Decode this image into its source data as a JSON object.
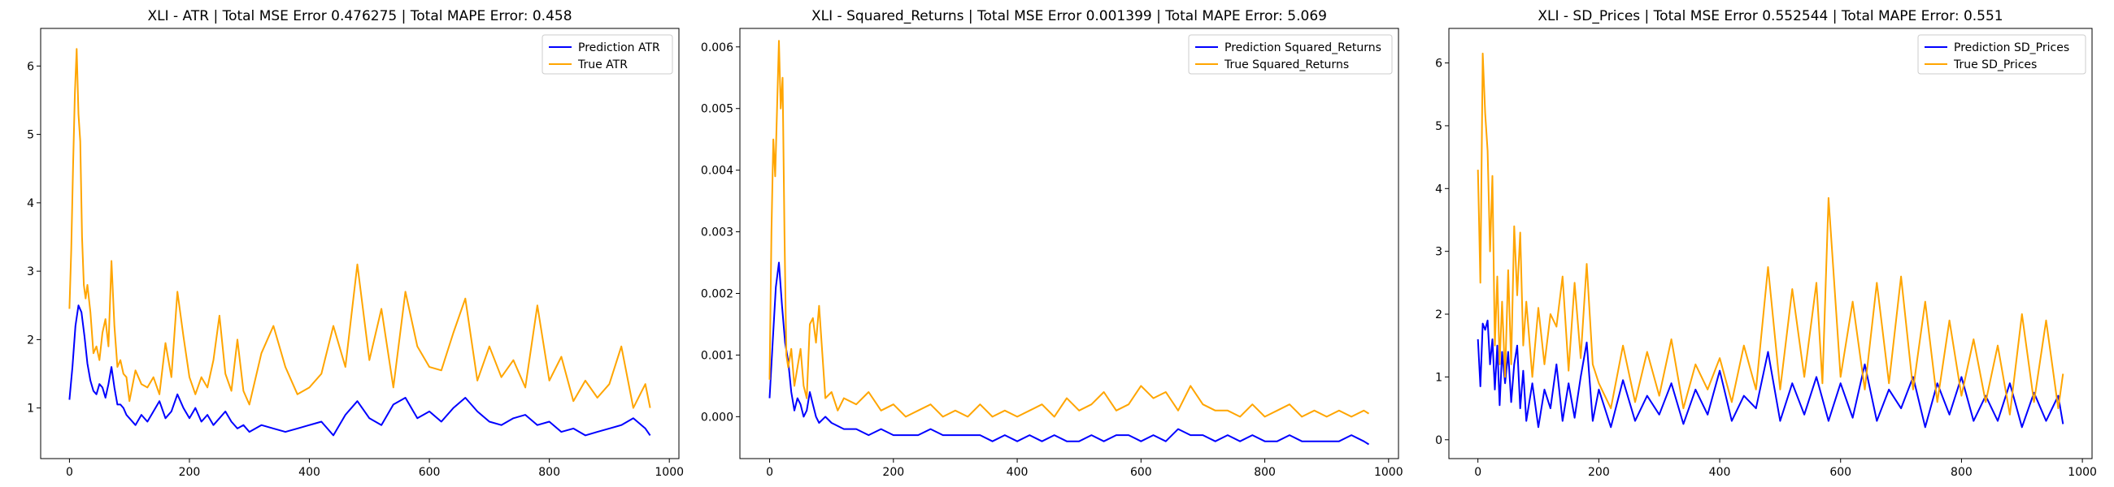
{
  "chart_data": [
    {
      "type": "line",
      "title": "XLI - ATR | Total MSE Error 0.476275 | Total MAPE Error: 0.458",
      "xlabel": "",
      "ylabel": "",
      "xlim": [
        -48,
        1016
      ],
      "ylim": [
        0.26,
        6.55
      ],
      "xticks": [
        0,
        200,
        400,
        600,
        800,
        1000
      ],
      "xtick_labels": [
        "0",
        "200",
        "400",
        "600",
        "800",
        "1000"
      ],
      "yticks": [
        1,
        2,
        3,
        4,
        5,
        6
      ],
      "ytick_labels": [
        "1",
        "2",
        "3",
        "4",
        "5",
        "6"
      ],
      "grid": false,
      "legend_position": "upper right",
      "series": [
        {
          "name": "Prediction ATR",
          "color": "#0000ff",
          "x": [
            0,
            5,
            10,
            15,
            20,
            25,
            30,
            35,
            40,
            45,
            50,
            55,
            60,
            65,
            70,
            75,
            80,
            85,
            90,
            95,
            100,
            110,
            120,
            130,
            140,
            150,
            160,
            170,
            180,
            190,
            200,
            210,
            220,
            230,
            240,
            250,
            260,
            270,
            280,
            290,
            300,
            320,
            340,
            360,
            380,
            400,
            420,
            440,
            460,
            480,
            500,
            520,
            540,
            560,
            580,
            600,
            620,
            640,
            660,
            680,
            700,
            720,
            740,
            760,
            780,
            800,
            820,
            840,
            860,
            880,
            900,
            920,
            940,
            960,
            968
          ],
          "values": [
            1.12,
            1.6,
            2.2,
            2.5,
            2.4,
            2.05,
            1.65,
            1.4,
            1.25,
            1.2,
            1.35,
            1.3,
            1.15,
            1.35,
            1.6,
            1.3,
            1.05,
            1.05,
            1.0,
            0.9,
            0.85,
            0.75,
            0.9,
            0.8,
            0.95,
            1.1,
            0.85,
            0.95,
            1.2,
            1.0,
            0.85,
            1.0,
            0.8,
            0.9,
            0.75,
            0.85,
            0.95,
            0.8,
            0.7,
            0.75,
            0.65,
            0.75,
            0.7,
            0.65,
            0.7,
            0.75,
            0.8,
            0.6,
            0.9,
            1.1,
            0.85,
            0.75,
            1.05,
            1.15,
            0.85,
            0.95,
            0.8,
            1.0,
            1.15,
            0.95,
            0.8,
            0.75,
            0.85,
            0.9,
            0.75,
            0.8,
            0.65,
            0.7,
            0.6,
            0.65,
            0.7,
            0.75,
            0.85,
            0.7,
            0.6
          ]
        },
        {
          "name": "True ATR",
          "color": "#ffa500",
          "x": [
            0,
            3,
            6,
            9,
            12,
            15,
            18,
            21,
            24,
            27,
            30,
            35,
            40,
            45,
            50,
            55,
            60,
            65,
            70,
            75,
            80,
            85,
            90,
            95,
            100,
            110,
            120,
            130,
            140,
            150,
            160,
            170,
            180,
            190,
            200,
            210,
            220,
            230,
            240,
            250,
            260,
            270,
            280,
            290,
            300,
            320,
            340,
            360,
            380,
            400,
            420,
            440,
            460,
            480,
            500,
            520,
            540,
            560,
            580,
            600,
            620,
            640,
            660,
            680,
            700,
            720,
            740,
            760,
            780,
            800,
            820,
            840,
            860,
            880,
            900,
            920,
            940,
            960,
            968
          ],
          "values": [
            2.45,
            3.3,
            4.5,
            5.6,
            6.25,
            5.3,
            4.9,
            3.5,
            2.8,
            2.6,
            2.8,
            2.4,
            1.8,
            1.9,
            1.7,
            2.1,
            2.3,
            1.9,
            3.15,
            2.2,
            1.6,
            1.7,
            1.5,
            1.45,
            1.1,
            1.55,
            1.35,
            1.3,
            1.45,
            1.2,
            1.95,
            1.45,
            2.7,
            2.05,
            1.45,
            1.2,
            1.45,
            1.3,
            1.7,
            2.35,
            1.5,
            1.25,
            2.0,
            1.25,
            1.05,
            1.8,
            2.2,
            1.6,
            1.2,
            1.3,
            1.5,
            2.2,
            1.6,
            3.1,
            1.7,
            2.45,
            1.3,
            2.7,
            1.9,
            1.6,
            1.55,
            2.1,
            2.6,
            1.4,
            1.9,
            1.45,
            1.7,
            1.3,
            2.5,
            1.4,
            1.75,
            1.1,
            1.4,
            1.15,
            1.35,
            1.9,
            1.0,
            1.35,
            1.0
          ]
        }
      ]
    },
    {
      "type": "line",
      "title": "XLI - Squared_Returns | Total MSE Error 0.001399 | Total MAPE Error: 5.069",
      "xlabel": "",
      "ylabel": "",
      "xlim": [
        -48,
        1016
      ],
      "ylim": [
        -0.00068,
        0.0063
      ],
      "xticks": [
        0,
        200,
        400,
        600,
        800,
        1000
      ],
      "xtick_labels": [
        "0",
        "200",
        "400",
        "600",
        "800",
        "1000"
      ],
      "yticks": [
        0.0,
        0.001,
        0.002,
        0.003,
        0.004,
        0.005,
        0.006
      ],
      "ytick_labels": [
        "0.000",
        "0.001",
        "0.002",
        "0.003",
        "0.004",
        "0.005",
        "0.006"
      ],
      "grid": false,
      "legend_position": "upper right",
      "series": [
        {
          "name": "Prediction Squared_Returns",
          "color": "#0000ff",
          "x": [
            0,
            5,
            10,
            15,
            20,
            25,
            30,
            35,
            40,
            45,
            50,
            55,
            60,
            65,
            70,
            75,
            80,
            90,
            100,
            120,
            140,
            160,
            180,
            200,
            220,
            240,
            260,
            280,
            300,
            320,
            340,
            360,
            380,
            400,
            420,
            440,
            460,
            480,
            500,
            520,
            540,
            560,
            580,
            600,
            620,
            640,
            660,
            680,
            700,
            720,
            740,
            760,
            780,
            800,
            820,
            840,
            860,
            880,
            900,
            920,
            940,
            960,
            968
          ],
          "values": [
            0.0003,
            0.0012,
            0.0021,
            0.0025,
            0.0018,
            0.0012,
            0.0009,
            0.0004,
            0.0001,
            0.0003,
            0.0002,
            0.0,
            0.0001,
            0.0004,
            0.0002,
            0.0,
            -0.0001,
            0.0,
            -0.0001,
            -0.0002,
            -0.0002,
            -0.0003,
            -0.0002,
            -0.0003,
            -0.0003,
            -0.0003,
            -0.0002,
            -0.0003,
            -0.0003,
            -0.0003,
            -0.0003,
            -0.0004,
            -0.0003,
            -0.0004,
            -0.0003,
            -0.0004,
            -0.0003,
            -0.0004,
            -0.0004,
            -0.0003,
            -0.0004,
            -0.0003,
            -0.0003,
            -0.0004,
            -0.0003,
            -0.0004,
            -0.0002,
            -0.0003,
            -0.0003,
            -0.0004,
            -0.0003,
            -0.0004,
            -0.0003,
            -0.0004,
            -0.0004,
            -0.0003,
            -0.0004,
            -0.0004,
            -0.0004,
            -0.0004,
            -0.0003,
            -0.0004,
            -0.00045
          ]
        },
        {
          "name": "True Squared_Returns",
          "color": "#ffa500",
          "x": [
            0,
            3,
            6,
            9,
            12,
            15,
            18,
            21,
            24,
            27,
            30,
            35,
            40,
            45,
            50,
            55,
            60,
            65,
            70,
            75,
            80,
            90,
            100,
            110,
            120,
            140,
            160,
            180,
            200,
            220,
            240,
            260,
            280,
            300,
            320,
            340,
            360,
            380,
            400,
            420,
            440,
            460,
            480,
            500,
            520,
            540,
            560,
            580,
            600,
            620,
            640,
            660,
            680,
            700,
            720,
            740,
            760,
            780,
            800,
            820,
            840,
            860,
            880,
            900,
            920,
            940,
            960,
            968
          ],
          "values": [
            0.0006,
            0.003,
            0.0045,
            0.0039,
            0.005,
            0.0061,
            0.005,
            0.0055,
            0.003,
            0.001,
            0.0008,
            0.0011,
            0.0005,
            0.0008,
            0.0011,
            0.0005,
            0.0003,
            0.0015,
            0.0016,
            0.0012,
            0.0018,
            0.0003,
            0.0004,
            0.0001,
            0.0003,
            0.0002,
            0.0004,
            0.0001,
            0.0002,
            0.0,
            0.0001,
            0.0002,
            0.0,
            0.0001,
            0.0,
            0.0002,
            0.0,
            0.0001,
            0.0,
            0.0001,
            0.0002,
            0.0,
            0.0003,
            0.0001,
            0.0002,
            0.0004,
            0.0001,
            0.0002,
            0.0005,
            0.0003,
            0.0004,
            0.0001,
            0.0005,
            0.0002,
            0.0001,
            0.0001,
            0.0,
            0.0002,
            0.0,
            0.0001,
            0.0002,
            0.0,
            0.0001,
            0.0,
            0.0001,
            0.0,
            0.0001,
            5e-05
          ]
        }
      ]
    },
    {
      "type": "line",
      "title": "XLI - SD_Prices | Total MSE Error 0.552544 | Total MAPE Error: 0.551",
      "xlabel": "",
      "ylabel": "",
      "xlim": [
        -48,
        1016
      ],
      "ylim": [
        -0.3,
        6.55
      ],
      "xticks": [
        0,
        200,
        400,
        600,
        800,
        1000
      ],
      "xtick_labels": [
        "0",
        "200",
        "400",
        "600",
        "800",
        "1000"
      ],
      "yticks": [
        0,
        1,
        2,
        3,
        4,
        5,
        6
      ],
      "ytick_labels": [
        "0",
        "1",
        "2",
        "3",
        "4",
        "5",
        "6"
      ],
      "grid": false,
      "legend_position": "upper right",
      "series": [
        {
          "name": "Prediction SD_Prices",
          "color": "#0000ff",
          "x": [
            0,
            4,
            8,
            12,
            16,
            20,
            24,
            28,
            32,
            36,
            40,
            45,
            50,
            55,
            60,
            65,
            70,
            75,
            80,
            90,
            100,
            110,
            120,
            130,
            140,
            150,
            160,
            170,
            180,
            190,
            200,
            220,
            240,
            260,
            280,
            300,
            320,
            340,
            360,
            380,
            400,
            420,
            440,
            460,
            480,
            500,
            520,
            540,
            560,
            580,
            600,
            620,
            640,
            660,
            680,
            700,
            720,
            740,
            760,
            780,
            800,
            820,
            840,
            860,
            880,
            900,
            920,
            940,
            960,
            968
          ],
          "values": [
            1.6,
            0.85,
            1.85,
            1.75,
            1.9,
            1.2,
            1.6,
            0.8,
            1.5,
            0.55,
            1.4,
            0.9,
            1.4,
            0.6,
            1.2,
            1.5,
            0.5,
            1.1,
            0.3,
            0.9,
            0.2,
            0.8,
            0.5,
            1.2,
            0.3,
            0.9,
            0.35,
            1.0,
            1.55,
            0.3,
            0.8,
            0.2,
            0.95,
            0.3,
            0.7,
            0.4,
            0.9,
            0.25,
            0.8,
            0.4,
            1.1,
            0.3,
            0.7,
            0.5,
            1.4,
            0.3,
            0.9,
            0.4,
            1.0,
            0.3,
            0.9,
            0.35,
            1.2,
            0.3,
            0.8,
            0.5,
            1.0,
            0.2,
            0.9,
            0.4,
            1.0,
            0.3,
            0.7,
            0.3,
            0.9,
            0.2,
            0.75,
            0.3,
            0.7,
            0.25
          ]
        },
        {
          "name": "True SD_Prices",
          "color": "#ffa500",
          "x": [
            0,
            4,
            8,
            12,
            16,
            20,
            24,
            28,
            32,
            36,
            40,
            45,
            50,
            55,
            60,
            65,
            70,
            75,
            80,
            90,
            100,
            110,
            120,
            130,
            140,
            150,
            160,
            170,
            180,
            190,
            200,
            220,
            240,
            260,
            280,
            300,
            320,
            340,
            360,
            380,
            400,
            420,
            440,
            460,
            480,
            500,
            520,
            540,
            560,
            570,
            580,
            600,
            620,
            640,
            660,
            680,
            700,
            720,
            740,
            760,
            780,
            800,
            820,
            840,
            860,
            880,
            900,
            920,
            940,
            960,
            968
          ],
          "values": [
            4.3,
            2.5,
            6.15,
            5.2,
            4.6,
            3.0,
            4.2,
            1.5,
            2.6,
            1.2,
            2.2,
            1.0,
            2.7,
            1.2,
            3.4,
            2.3,
            3.3,
            1.5,
            2.2,
            1.0,
            2.1,
            1.2,
            2.0,
            1.8,
            2.6,
            1.1,
            2.5,
            1.3,
            2.8,
            1.2,
            0.9,
            0.5,
            1.5,
            0.6,
            1.4,
            0.7,
            1.6,
            0.5,
            1.2,
            0.8,
            1.3,
            0.6,
            1.5,
            0.8,
            2.75,
            0.8,
            2.4,
            1.0,
            2.5,
            0.9,
            3.85,
            1.0,
            2.2,
            0.8,
            2.5,
            0.9,
            2.6,
            0.8,
            2.2,
            0.6,
            1.9,
            0.7,
            1.6,
            0.6,
            1.5,
            0.4,
            2.0,
            0.6,
            1.9,
            0.5,
            1.05
          ]
        }
      ]
    }
  ]
}
